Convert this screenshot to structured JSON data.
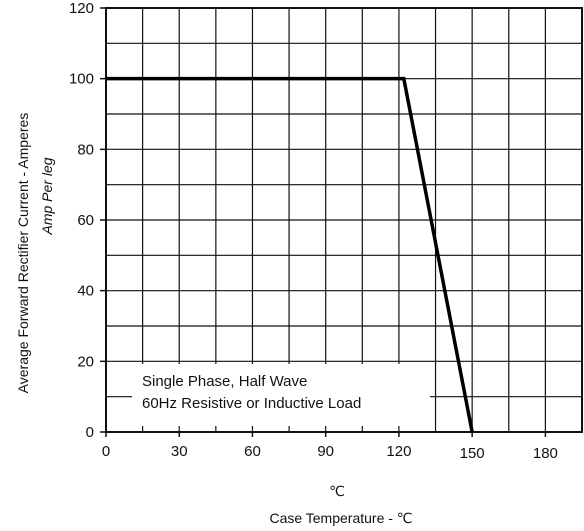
{
  "chart_data": {
    "type": "line",
    "xlabel": "Case Temperature -  ℃",
    "x_unit_label": "℃",
    "ylabel_line1": "Average  Forward  Rectifier  Current - Amperes",
    "ylabel_line2": "Amp   Per leg",
    "xlim": [
      0,
      195
    ],
    "ylim": [
      0,
      120
    ],
    "x_ticks": [
      0,
      30,
      60,
      90,
      120,
      150,
      180
    ],
    "y_ticks": [
      0,
      20,
      40,
      60,
      80,
      100,
      120
    ],
    "x_tick_labels": [
      "0",
      "30",
      "60",
      "90",
      "120",
      "150",
      "180"
    ],
    "y_tick_labels": [
      "0",
      "20",
      "40",
      "60",
      "80",
      "100",
      "120"
    ],
    "grid": true,
    "series": [
      {
        "x": [
          0,
          122,
          150
        ],
        "y": [
          100,
          100,
          0
        ]
      }
    ],
    "annotations": [
      "Single Phase, Half Wave",
      "60Hz Resistive or Inductive Load"
    ]
  }
}
